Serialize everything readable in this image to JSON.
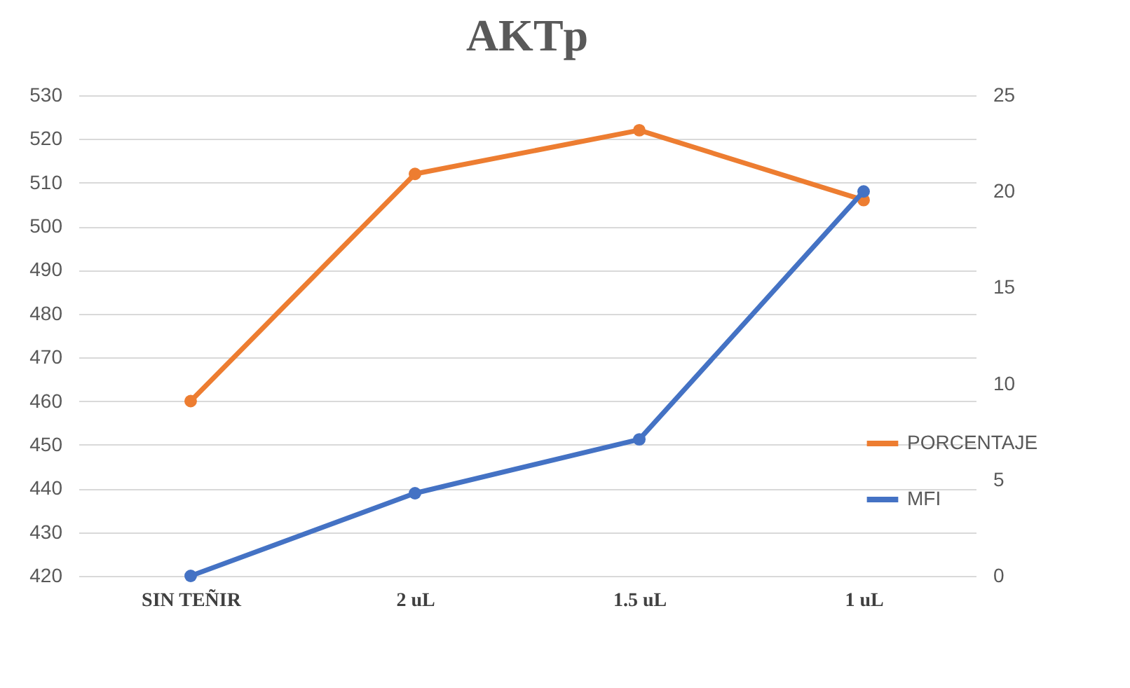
{
  "chart_data": {
    "type": "line",
    "title": "AKTp",
    "categories": [
      "SIN TEÑIR",
      "2 uL",
      "1.5 uL",
      "1 uL"
    ],
    "series": [
      {
        "name": "PORCENTAJE",
        "color": "#ed7d31",
        "values": [
          460,
          512,
          522,
          506
        ]
      },
      {
        "name": "MFI",
        "color": "#4472c4",
        "axis": "y2",
        "values": [
          0,
          4.3,
          7.1,
          20
        ]
      }
    ],
    "ylim": [
      420,
      530
    ],
    "yticks": [
      420,
      430,
      440,
      450,
      460,
      470,
      480,
      490,
      500,
      510,
      520,
      530
    ],
    "y2lim": [
      0,
      25
    ],
    "y2ticks": [
      0,
      5,
      10,
      15,
      20,
      25
    ],
    "grid": "y",
    "legend": "right",
    "marker": "circle",
    "line_style": "solid"
  }
}
